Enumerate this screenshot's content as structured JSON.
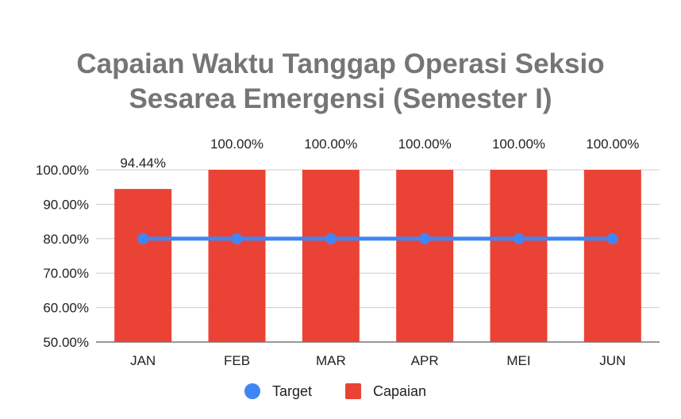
{
  "chart_data": {
    "type": "bar",
    "title_lines": [
      "Capaian Waktu Tanggap Operasi Seksio",
      "Sesarea Emergensi (Semester I)"
    ],
    "categories": [
      "JAN",
      "FEB",
      "MAR",
      "APR",
      "MEI",
      "JUN"
    ],
    "series": [
      {
        "name": "Capaian",
        "kind": "bar",
        "color": "#ea4335",
        "values": [
          94.44,
          100.0,
          100.0,
          100.0,
          100.0,
          100.0
        ],
        "data_labels": [
          "94.44%",
          "100.00%",
          "100.00%",
          "100.00%",
          "100.00%",
          "100.00%"
        ]
      },
      {
        "name": "Target",
        "kind": "line",
        "color": "#4285f4",
        "values": [
          80,
          80,
          80,
          80,
          80,
          80
        ]
      }
    ],
    "ylim": [
      50,
      100
    ],
    "yticks": [
      50,
      60,
      70,
      80,
      90,
      100
    ],
    "ytick_labels": [
      "50.00%",
      "60.00%",
      "70.00%",
      "80.00%",
      "90.00%",
      "100.00%"
    ],
    "grid": true,
    "legend_position": "bottom",
    "legend": [
      {
        "label": "Target",
        "marker": "circle",
        "color": "#4285f4"
      },
      {
        "label": "Capaian",
        "marker": "square",
        "color": "#ea4335"
      }
    ]
  }
}
